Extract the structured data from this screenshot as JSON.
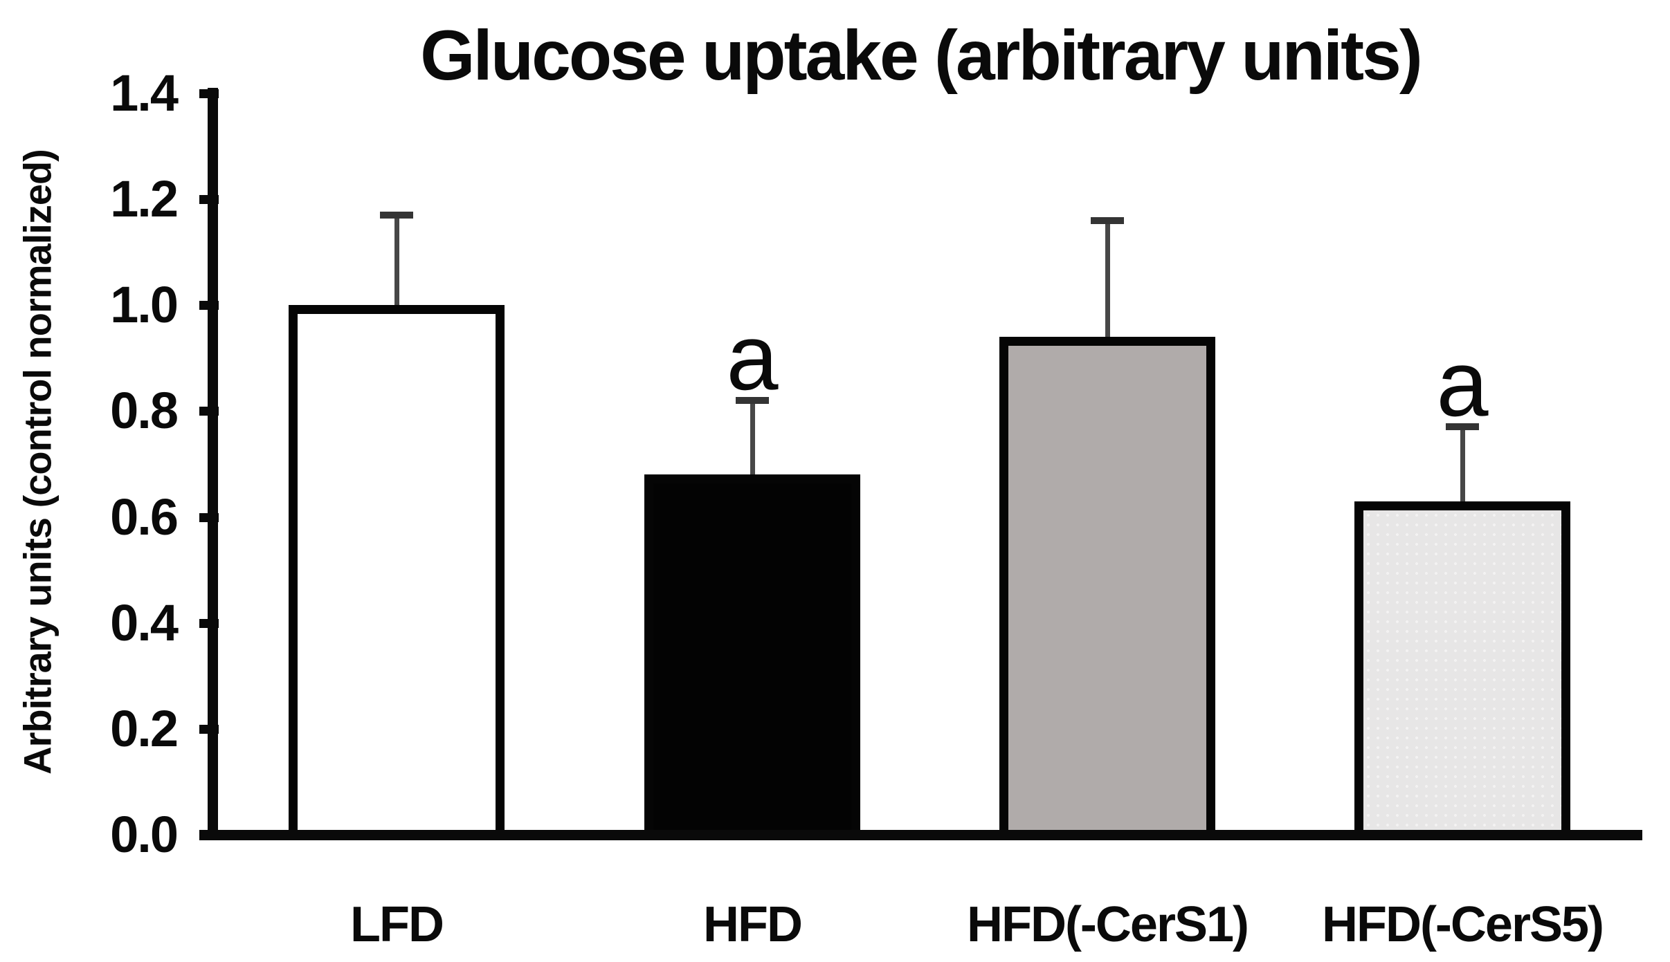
{
  "chart_data": {
    "type": "bar",
    "title": "Glucose uptake (arbitrary units)",
    "ylabel": "Arbitrary units (control normalized)",
    "xlabel": "",
    "categories": [
      "LFD",
      "HFD",
      "HFD(-CerS1)",
      "HFD(-CerS5)"
    ],
    "values": [
      1.0,
      0.68,
      0.94,
      0.63
    ],
    "errors_plus": [
      0.17,
      0.14,
      0.22,
      0.14
    ],
    "ylim": [
      0.0,
      1.4
    ],
    "yticks": [
      "0.0",
      "0.2",
      "0.4",
      "0.6",
      "0.8",
      "1.0",
      "1.2",
      "1.4"
    ],
    "grid": false,
    "legend": false,
    "annotations": [
      {
        "category": "HFD",
        "text": "a"
      },
      {
        "category": "HFD(-CerS5)",
        "text": "a"
      }
    ],
    "bar_fill_colors": [
      "#ffffff",
      "#030303",
      "#b0abaa",
      "#e7e6e6"
    ],
    "bar_border_color": "#050505",
    "error_bar_color": "#474747",
    "axis_color": "#0a0a0a",
    "background_color": "#ffffff"
  }
}
